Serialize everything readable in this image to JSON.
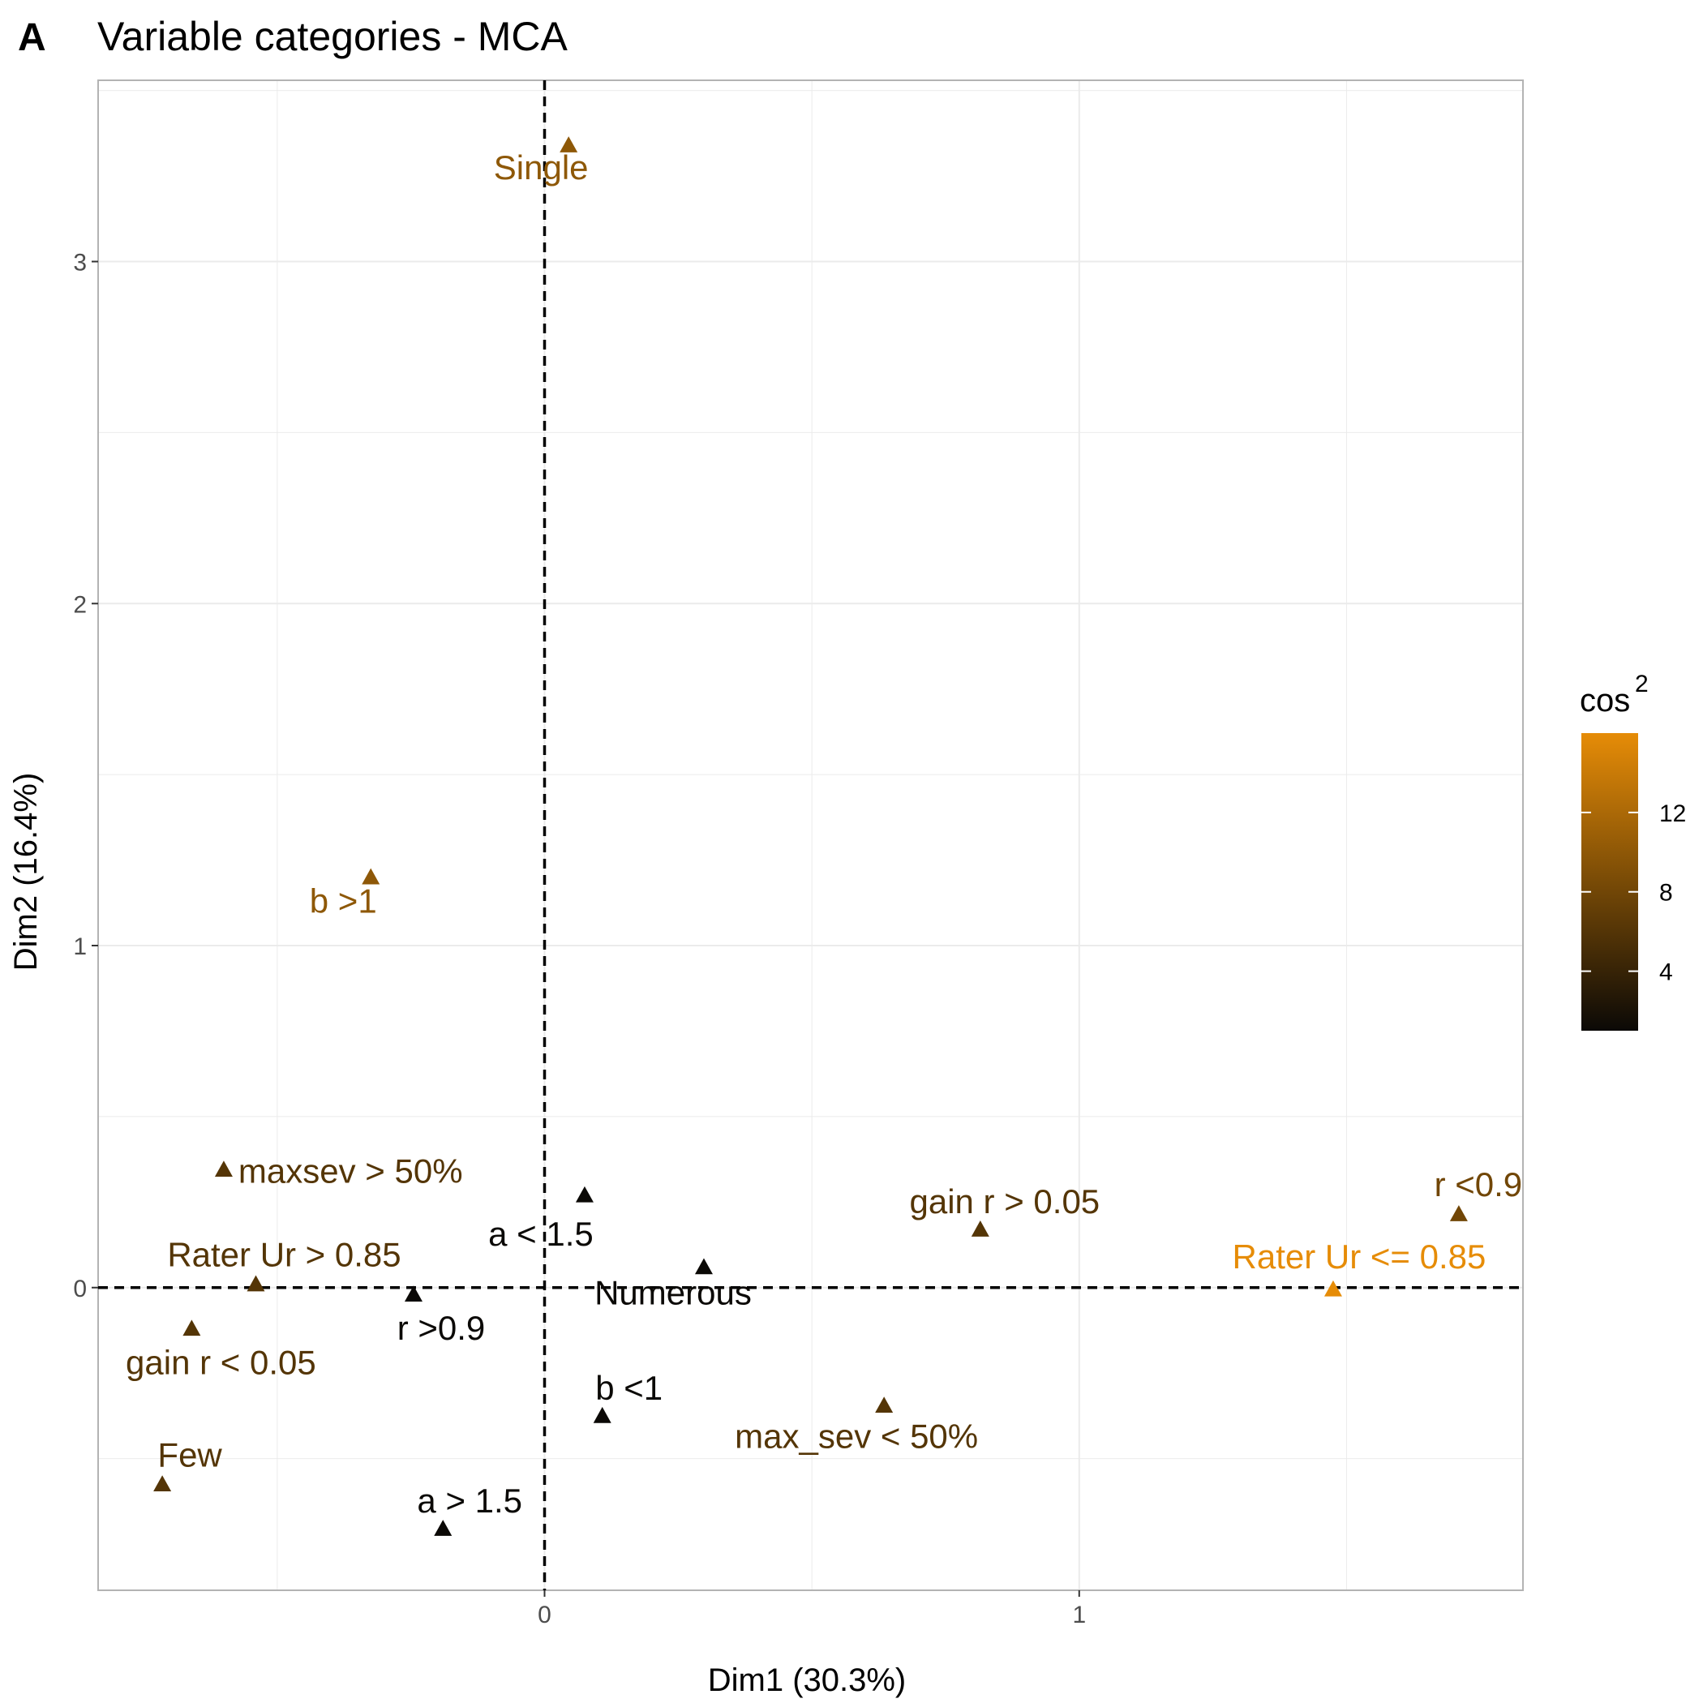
{
  "panel_letter": "A",
  "chart_data": {
    "type": "scatter",
    "title": "Variable categories - MCA",
    "xlabel": "Dim1 (30.3%)",
    "ylabel": "Dim2 (16.4%)",
    "xlim": [
      -0.835,
      1.83
    ],
    "ylim": [
      -0.885,
      3.53
    ],
    "x_ticks": [
      0,
      1
    ],
    "y_ticks": [
      0,
      1,
      2,
      3
    ],
    "grid": true,
    "reference_lines": {
      "x": 0,
      "y": 0,
      "style": "dashed"
    },
    "legend": {
      "title": "cos",
      "title_superscript": "2",
      "position": "right",
      "type": "continuous",
      "range": [
        1,
        16
      ],
      "ticks": [
        4,
        8,
        12
      ],
      "colors": {
        "low": "#0b0906",
        "high": "#e68c07"
      }
    },
    "points": [
      {
        "label": "Single",
        "x": 0.045,
        "y": 3.34,
        "cos2": 10
      },
      {
        "label": "b >1",
        "x": -0.325,
        "y": 1.2,
        "cos2": 10
      },
      {
        "label": "maxsev > 50%",
        "x": -0.6,
        "y": 0.345,
        "cos2": 6
      },
      {
        "label": "a < 1.5",
        "x": 0.075,
        "y": 0.27,
        "cos2": 1
      },
      {
        "label": "gain r > 0.05",
        "x": 0.815,
        "y": 0.17,
        "cos2": 6
      },
      {
        "label": "r <0.9",
        "x": 1.71,
        "y": 0.215,
        "cos2": 8
      },
      {
        "label": "Rater Ur <= 0.85",
        "x": 1.475,
        "y": -0.005,
        "cos2": 16
      },
      {
        "label": "Rater Ur > 0.85",
        "x": -0.54,
        "y": 0.01,
        "cos2": 6
      },
      {
        "label": "Numerous",
        "x": 0.298,
        "y": 0.06,
        "cos2": 1
      },
      {
        "label": "r >0.9",
        "x": -0.245,
        "y": -0.02,
        "cos2": 1
      },
      {
        "label": "gain r < 0.05",
        "x": -0.66,
        "y": -0.12,
        "cos2": 6
      },
      {
        "label": "b <1",
        "x": 0.108,
        "y": -0.375,
        "cos2": 1
      },
      {
        "label": "max_sev < 50%",
        "x": 0.635,
        "y": -0.345,
        "cos2": 6
      },
      {
        "label": "Few",
        "x": -0.715,
        "y": -0.575,
        "cos2": 6
      },
      {
        "label": "a > 1.5",
        "x": -0.19,
        "y": -0.705,
        "cos2": 1
      }
    ]
  }
}
